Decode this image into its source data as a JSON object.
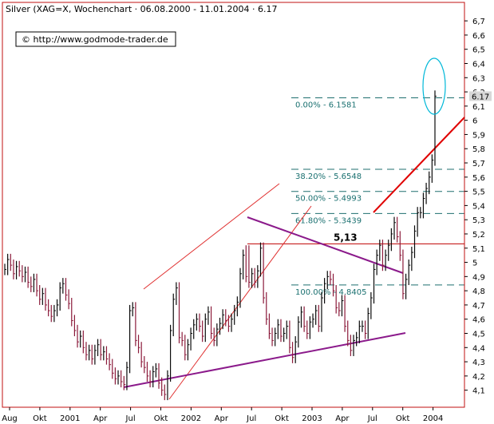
{
  "chart_data": {
    "type": "ohlc-bar",
    "title": "Silver (XAG=X, Wochenchart · 06.08.2000 - 11.01.2004 · 6.17",
    "copyright": "© http://www.godmode-trader.de",
    "last_price_label": "6.17",
    "ylim": [
      3.98,
      6.83
    ],
    "y_ticks": [
      "4,1",
      "4,2",
      "4,3",
      "4,4",
      "4,5",
      "4,6",
      "4,7",
      "4,8",
      "4,9",
      "5",
      "5,1",
      "5,2",
      "5,3",
      "5,4",
      "5,5",
      "5,6",
      "5,7",
      "5,8",
      "5,9",
      "6",
      "6,1",
      "6,2",
      "6,3",
      "6,4",
      "6,5",
      "6,6",
      "6,7"
    ],
    "x_ticks": [
      "Aug",
      "Okt",
      "2001",
      "Apr",
      "Jul",
      "Okt",
      "2002",
      "Apr",
      "Jul",
      "Okt",
      "2003",
      "Apr",
      "Jul",
      "Okt",
      "2004"
    ],
    "fibonacci_levels": [
      {
        "label": "0.00% - 6.1581",
        "value": 6.1581
      },
      {
        "label": "38.20% - 5.6548",
        "value": 5.6548
      },
      {
        "label": "50.00% - 5.4993",
        "value": 5.4993
      },
      {
        "label": "61.80% - 5.3439",
        "value": 5.3439
      },
      {
        "label": "100.00% - 4.8405",
        "value": 4.8405
      }
    ],
    "resistance": {
      "label": "5,13",
      "value": 5.13
    },
    "closes": [
      4.95,
      5.02,
      4.98,
      4.92,
      4.97,
      4.94,
      4.9,
      4.93,
      4.86,
      4.83,
      4.88,
      4.8,
      4.74,
      4.78,
      4.7,
      4.66,
      4.62,
      4.66,
      4.7,
      4.82,
      4.85,
      4.77,
      4.71,
      4.59,
      4.52,
      4.44,
      4.48,
      4.4,
      4.35,
      4.38,
      4.32,
      4.38,
      4.42,
      4.35,
      4.37,
      4.32,
      4.28,
      4.22,
      4.18,
      4.2,
      4.16,
      4.14,
      4.26,
      4.66,
      4.68,
      4.45,
      4.4,
      4.3,
      4.26,
      4.2,
      4.16,
      4.23,
      4.25,
      4.15,
      4.1,
      4.07,
      4.2,
      4.52,
      4.74,
      4.82,
      4.47,
      4.45,
      4.35,
      4.42,
      4.5,
      4.56,
      4.6,
      4.55,
      4.48,
      4.6,
      4.65,
      4.5,
      4.45,
      4.53,
      4.57,
      4.63,
      4.59,
      4.55,
      4.6,
      4.66,
      4.72,
      4.92,
      5.05,
      4.9,
      4.86,
      4.92,
      4.86,
      4.94,
      5.1,
      4.75,
      4.6,
      4.5,
      4.45,
      4.5,
      4.56,
      4.48,
      4.5,
      4.55,
      4.4,
      4.33,
      4.44,
      4.58,
      4.65,
      4.55,
      4.5,
      4.58,
      4.6,
      4.66,
      4.55,
      4.75,
      4.85,
      4.9,
      4.88,
      4.8,
      4.68,
      4.66,
      4.73,
      4.55,
      4.45,
      4.38,
      4.45,
      4.47,
      4.55,
      4.55,
      4.5,
      4.64,
      4.75,
      4.95,
      5.05,
      5.12,
      4.98,
      5.05,
      5.12,
      5.2,
      5.28,
      5.18,
      5.05,
      4.78,
      4.88,
      4.98,
      5.07,
      5.22,
      5.35,
      5.35,
      5.45,
      5.52,
      5.6,
      5.72,
      6.17
    ],
    "spikes": {
      "83": 5.12,
      "84": 5.12,
      "149": 6.25
    }
  }
}
